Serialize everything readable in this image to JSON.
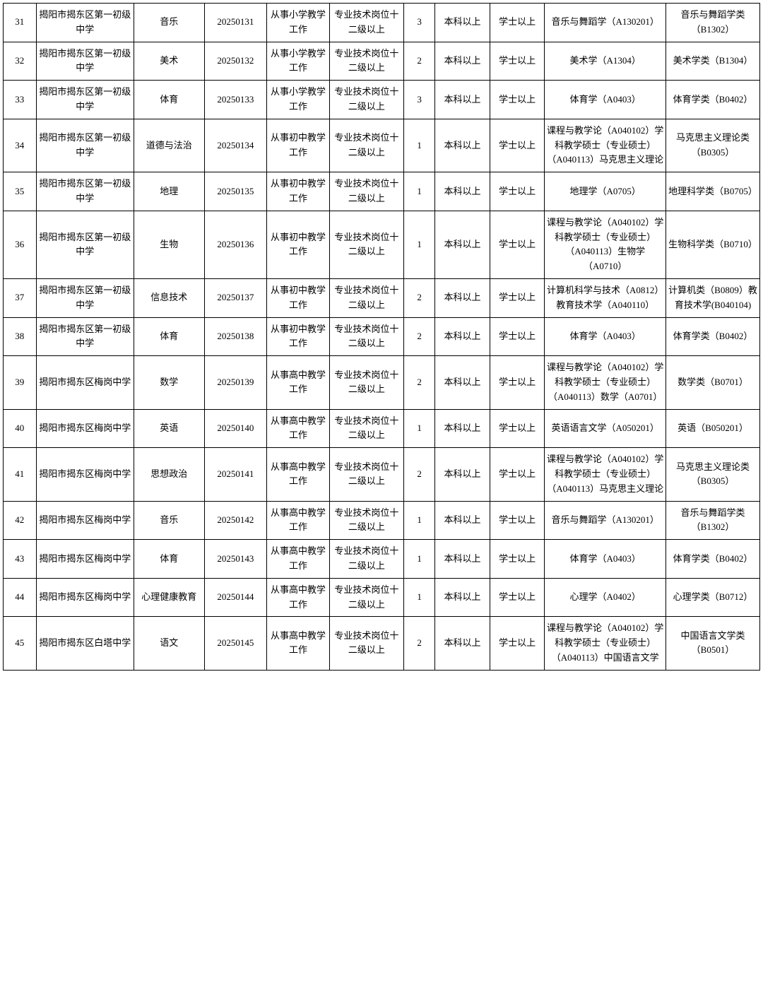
{
  "table": {
    "column_widths_pct": [
      4.2,
      12.5,
      9,
      8,
      8,
      9.5,
      4,
      7,
      7,
      15.5,
      12
    ],
    "border_color": "#000000",
    "background_color": "#ffffff",
    "text_color": "#000000",
    "font_size_pt": 10,
    "rows": [
      {
        "idx": "31",
        "school": "揭阳市揭东区第一初级中学",
        "subject": "音乐",
        "code": "20250131",
        "work": "从事小学教学工作",
        "post": "专业技术岗位十二级以上",
        "count": "3",
        "edu": "本科以上",
        "degree": "学士以上",
        "grad": "音乐与舞蹈学（A130201）",
        "major": "音乐与舞蹈学类（B1302）"
      },
      {
        "idx": "32",
        "school": "揭阳市揭东区第一初级中学",
        "subject": "美术",
        "code": "20250132",
        "work": "从事小学教学工作",
        "post": "专业技术岗位十二级以上",
        "count": "2",
        "edu": "本科以上",
        "degree": "学士以上",
        "grad": "美术学（A1304）",
        "major": "美术学类（B1304）"
      },
      {
        "idx": "33",
        "school": "揭阳市揭东区第一初级中学",
        "subject": "体育",
        "code": "20250133",
        "work": "从事小学教学工作",
        "post": "专业技术岗位十二级以上",
        "count": "3",
        "edu": "本科以上",
        "degree": "学士以上",
        "grad": "体育学（A0403）",
        "major": "体育学类（B0402）"
      },
      {
        "idx": "34",
        "school": "揭阳市揭东区第一初级中学",
        "subject": "道德与法治",
        "code": "20250134",
        "work": "从事初中教学工作",
        "post": "专业技术岗位十二级以上",
        "count": "1",
        "edu": "本科以上",
        "degree": "学士以上",
        "grad": "课程与教学论（A040102）学科教学硕士（专业硕士）（A040113）马克思主义理论",
        "major": "马克思主义理论类（B0305）"
      },
      {
        "idx": "35",
        "school": "揭阳市揭东区第一初级中学",
        "subject": "地理",
        "code": "20250135",
        "work": "从事初中教学工作",
        "post": "专业技术岗位十二级以上",
        "count": "1",
        "edu": "本科以上",
        "degree": "学士以上",
        "grad": "地理学（A0705）",
        "major": "地理科学类（B0705）"
      },
      {
        "idx": "36",
        "school": "揭阳市揭东区第一初级中学",
        "subject": "生物",
        "code": "20250136",
        "work": "从事初中教学工作",
        "post": "专业技术岗位十二级以上",
        "count": "1",
        "edu": "本科以上",
        "degree": "学士以上",
        "grad": "课程与教学论（A040102）学科教学硕士（专业硕士）（A040113）生物学（A0710）",
        "major": "生物科学类（B0710）"
      },
      {
        "idx": "37",
        "school": "揭阳市揭东区第一初级中学",
        "subject": "信息技术",
        "code": "20250137",
        "work": "从事初中教学工作",
        "post": "专业技术岗位十二级以上",
        "count": "2",
        "edu": "本科以上",
        "degree": "学士以上",
        "grad": "计算机科学与技术（A0812）教育技术学（A040110）",
        "major": "计算机类（B0809）教育技术学(B040104)"
      },
      {
        "idx": "38",
        "school": "揭阳市揭东区第一初级中学",
        "subject": "体育",
        "code": "20250138",
        "work": "从事初中教学工作",
        "post": "专业技术岗位十二级以上",
        "count": "2",
        "edu": "本科以上",
        "degree": "学士以上",
        "grad": "体育学（A0403）",
        "major": "体育学类（B0402）"
      },
      {
        "idx": "39",
        "school": "揭阳市揭东区梅岗中学",
        "subject": "数学",
        "code": "20250139",
        "work": "从事高中教学工作",
        "post": "专业技术岗位十二级以上",
        "count": "2",
        "edu": "本科以上",
        "degree": "学士以上",
        "grad": "课程与教学论（A040102）学科教学硕士（专业硕士）（A040113）数学（A0701）",
        "major": "数学类（B0701）"
      },
      {
        "idx": "40",
        "school": "揭阳市揭东区梅岗中学",
        "subject": "英语",
        "code": "20250140",
        "work": "从事高中教学工作",
        "post": "专业技术岗位十二级以上",
        "count": "1",
        "edu": "本科以上",
        "degree": "学士以上",
        "grad": "英语语言文学（A050201）",
        "major": "英语（B050201）"
      },
      {
        "idx": "41",
        "school": "揭阳市揭东区梅岗中学",
        "subject": "思想政治",
        "code": "20250141",
        "work": "从事高中教学工作",
        "post": "专业技术岗位十二级以上",
        "count": "2",
        "edu": "本科以上",
        "degree": "学士以上",
        "grad": "课程与教学论（A040102）学科教学硕士（专业硕士）（A040113）马克思主义理论",
        "major": "马克思主义理论类（B0305）"
      },
      {
        "idx": "42",
        "school": "揭阳市揭东区梅岗中学",
        "subject": "音乐",
        "code": "20250142",
        "work": "从事高中教学工作",
        "post": "专业技术岗位十二级以上",
        "count": "1",
        "edu": "本科以上",
        "degree": "学士以上",
        "grad": "音乐与舞蹈学（A130201）",
        "major": "音乐与舞蹈学类（B1302）"
      },
      {
        "idx": "43",
        "school": "揭阳市揭东区梅岗中学",
        "subject": "体育",
        "code": "20250143",
        "work": "从事高中教学工作",
        "post": "专业技术岗位十二级以上",
        "count": "1",
        "edu": "本科以上",
        "degree": "学士以上",
        "grad": "体育学（A0403）",
        "major": "体育学类（B0402）"
      },
      {
        "idx": "44",
        "school": "揭阳市揭东区梅岗中学",
        "subject": "心理健康教育",
        "code": "20250144",
        "work": "从事高中教学工作",
        "post": "专业技术岗位十二级以上",
        "count": "1",
        "edu": "本科以上",
        "degree": "学士以上",
        "grad": "心理学（A0402）",
        "major": "心理学类（B0712）"
      },
      {
        "idx": "45",
        "school": "揭阳市揭东区白塔中学",
        "subject": "语文",
        "code": "20250145",
        "work": "从事高中教学工作",
        "post": "专业技术岗位十二级以上",
        "count": "2",
        "edu": "本科以上",
        "degree": "学士以上",
        "grad": "课程与教学论（A040102）学科教学硕士（专业硕士）（A040113）中国语言文学",
        "major": "中国语言文学类（B0501）"
      }
    ]
  }
}
